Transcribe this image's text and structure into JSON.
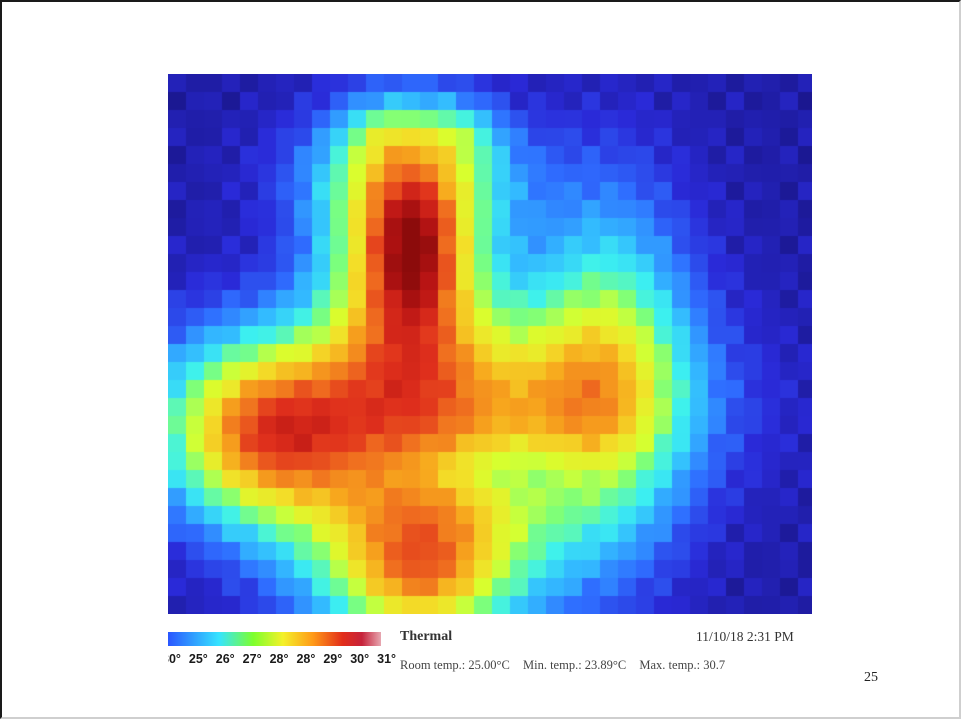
{
  "thermal": {
    "title": "Thermal",
    "timestamp": "11/10/18 2:31 PM",
    "scale_ticks": [
      "30°",
      "25°",
      "26°",
      "27°",
      "28°",
      "28°",
      "29°",
      "30°",
      "31°"
    ],
    "room_temp": "Room temp.: 25.00°C",
    "min_temp": "Min. temp.: 23.89°C",
    "max_temp": "Max. temp.: 30.7",
    "palette": [
      "#17137f",
      "#2a2ad8",
      "#2f6dff",
      "#33b9ff",
      "#3cf0f0",
      "#7dff7a",
      "#d8ff2e",
      "#f3df28",
      "#f7a51d",
      "#ef6b1f",
      "#df2f1c",
      "#b91414",
      "#8c0b0b"
    ]
  },
  "slide": {
    "page_number": "25"
  }
}
